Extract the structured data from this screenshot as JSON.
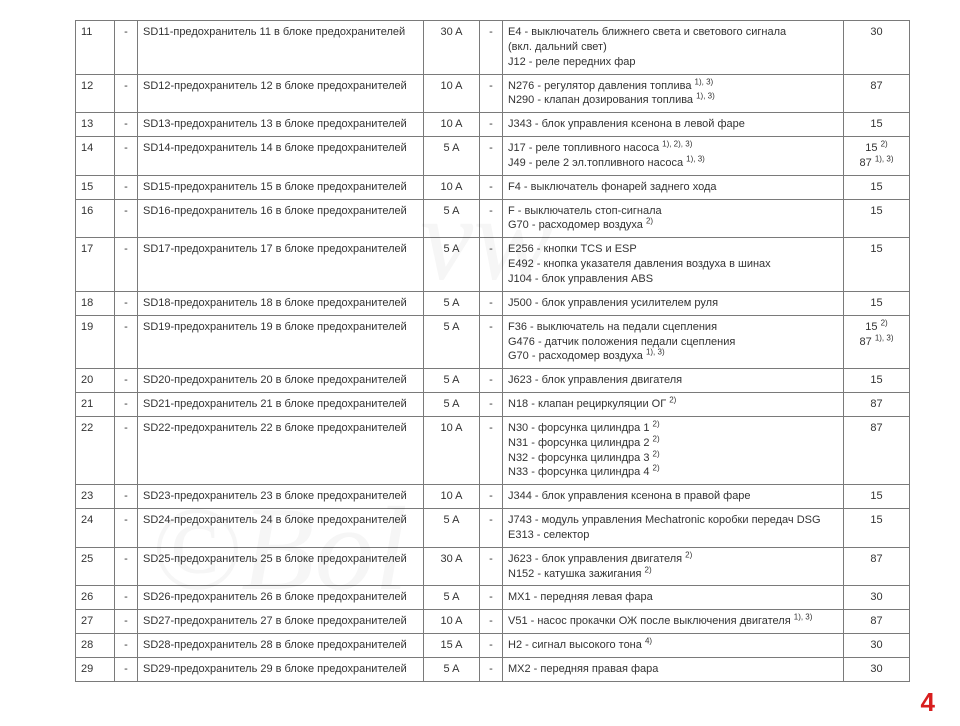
{
  "page_number": "4",
  "watermarks": {
    "a": "vw",
    "b": "©Bol"
  },
  "columns": [
    "num",
    "dash1",
    "fuse",
    "amp",
    "dash2",
    "desc",
    "ref"
  ],
  "rows": [
    {
      "num": "11",
      "dash1": "-",
      "fuse": "SD11-предохранитель 11 в блоке предохранителей",
      "amp": "30 A",
      "dash2": "-",
      "desc": [
        "E4 - выключатель ближнего света и светового сигнала",
        "(вкл. дальний свет)",
        "J12 - реле передних фар"
      ],
      "ref": [
        "30"
      ]
    },
    {
      "num": "12",
      "dash1": "-",
      "fuse": "SD12-предохранитель 12 в блоке предохранителей",
      "amp": "10 A",
      "dash2": "-",
      "desc": [
        "N276 - регулятор давления топлива <sup>1), 3)</sup>",
        "N290 - клапан дозирования топлива <sup>1), 3)</sup>"
      ],
      "ref": [
        "87"
      ]
    },
    {
      "num": "13",
      "dash1": "-",
      "fuse": "SD13-предохранитель 13 в блоке предохранителей",
      "amp": "10 A",
      "dash2": "-",
      "desc": [
        "J343 - блок управления ксенона в левой фаре"
      ],
      "ref": [
        "15"
      ]
    },
    {
      "num": "14",
      "dash1": "-",
      "fuse": "SD14-предохранитель 14 в блоке предохранителей",
      "amp": "5 A",
      "dash2": "-",
      "desc": [
        "J17 - реле топливного насоса <sup>1), 2), 3)</sup>",
        "J49 - реле 2 эл.топливного насоса <sup>1), 3)</sup>"
      ],
      "ref": [
        "15 <sup>2)</sup>",
        "87 <sup>1), 3)</sup>"
      ]
    },
    {
      "num": "15",
      "dash1": "-",
      "fuse": "SD15-предохранитель 15 в блоке предохранителей",
      "amp": "10 A",
      "dash2": "-",
      "desc": [
        "F4 - выключатель фонарей заднего хода"
      ],
      "ref": [
        "15"
      ]
    },
    {
      "num": "16",
      "dash1": "-",
      "fuse": "SD16-предохранитель 16 в блоке предохранителей",
      "amp": "5 A",
      "dash2": "-",
      "desc": [
        "F - выключатель стоп-сигнала",
        "G70 - расходомер воздуха <sup>2)</sup>"
      ],
      "ref": [
        "15"
      ]
    },
    {
      "num": "17",
      "dash1": "-",
      "fuse": "SD17-предохранитель 17 в блоке предохранителей",
      "amp": "5 A",
      "dash2": "-",
      "desc": [
        "E256 - кнопки TCS и ESP",
        "E492 - кнопка указателя давления воздуха в шинах",
        "J104 - блок управления ABS"
      ],
      "ref": [
        "15"
      ]
    },
    {
      "num": "18",
      "dash1": "-",
      "fuse": "SD18-предохранитель 18 в блоке предохранителей",
      "amp": "5 A",
      "dash2": "-",
      "desc": [
        "J500 - блок управления усилителем руля"
      ],
      "ref": [
        "15"
      ]
    },
    {
      "num": "19",
      "dash1": "-",
      "fuse": "SD19-предохранитель 19 в блоке предохранителей",
      "amp": "5 A",
      "dash2": "-",
      "desc": [
        "F36 - выключатель на педали сцепления",
        "G476 - датчик положения педали сцепления",
        "G70 - расходомер воздуха <sup>1), 3)</sup>"
      ],
      "ref": [
        "15 <sup>2)</sup>",
        "87 <sup>1), 3)</sup>"
      ]
    },
    {
      "num": "20",
      "dash1": "-",
      "fuse": "SD20-предохранитель 20 в блоке предохранителей",
      "amp": "5 A",
      "dash2": "-",
      "desc": [
        "J623 - блок управления двигателя"
      ],
      "ref": [
        "15"
      ]
    },
    {
      "num": "21",
      "dash1": "-",
      "fuse": "SD21-предохранитель 21 в блоке предохранителей",
      "amp": "5 A",
      "dash2": "-",
      "desc": [
        "N18 - клапан рециркуляции ОГ <sup>2)</sup>"
      ],
      "ref": [
        "87"
      ]
    },
    {
      "num": "22",
      "dash1": "-",
      "fuse": "SD22-предохранитель 22 в блоке предохранителей",
      "amp": "10 A",
      "dash2": "-",
      "desc": [
        "N30 - форсунка цилиндра 1 <sup>2)</sup>",
        "N31 - форсунка цилиндра 2 <sup>2)</sup>",
        "N32 - форсунка цилиндра 3 <sup>2)</sup>",
        "N33 - форсунка цилиндра 4 <sup>2)</sup>"
      ],
      "ref": [
        "87"
      ]
    },
    {
      "num": "23",
      "dash1": "-",
      "fuse": "SD23-предохранитель 23 в блоке предохранителей",
      "amp": "10 A",
      "dash2": "-",
      "desc": [
        "J344 - блок управления ксенона в правой фаре"
      ],
      "ref": [
        "15"
      ]
    },
    {
      "num": "24",
      "dash1": "-",
      "fuse": "SD24-предохранитель 24 в блоке предохранителей",
      "amp": "5 A",
      "dash2": "-",
      "desc": [
        "J743 - модуль управления Mechatronic коробки передач DSG",
        "E313 - селектор"
      ],
      "ref": [
        "15"
      ]
    },
    {
      "num": "25",
      "dash1": "-",
      "fuse": "SD25-предохранитель 25 в блоке предохранителей",
      "amp": "30 A",
      "dash2": "-",
      "desc": [
        "J623 - блок управления двигателя <sup>2)</sup>",
        "N152 - катушка зажигания <sup>2)</sup>"
      ],
      "ref": [
        "87"
      ]
    },
    {
      "num": "26",
      "dash1": "-",
      "fuse": "SD26-предохранитель 26 в блоке предохранителей",
      "amp": "5 A",
      "dash2": "-",
      "desc": [
        "MX1 - передняя левая фара"
      ],
      "ref": [
        "30"
      ]
    },
    {
      "num": "27",
      "dash1": "-",
      "fuse": "SD27-предохранитель 27 в блоке предохранителей",
      "amp": "10 A",
      "dash2": "-",
      "desc": [
        "V51 - насос прокачки ОЖ после выключения двигателя <sup>1), 3)</sup>"
      ],
      "ref": [
        "87"
      ]
    },
    {
      "num": "28",
      "dash1": "-",
      "fuse": "SD28-предохранитель 28 в блоке предохранителей",
      "amp": "15 A",
      "dash2": "-",
      "desc": [
        "H2 - сигнал высокого тона <sup>4)</sup>"
      ],
      "ref": [
        "30"
      ]
    },
    {
      "num": "29",
      "dash1": "-",
      "fuse": "SD29-предохранитель 29 в блоке предохранителей",
      "amp": "5 A",
      "dash2": "-",
      "desc": [
        "MX2 - передняя правая фара"
      ],
      "ref": [
        "30"
      ]
    }
  ]
}
